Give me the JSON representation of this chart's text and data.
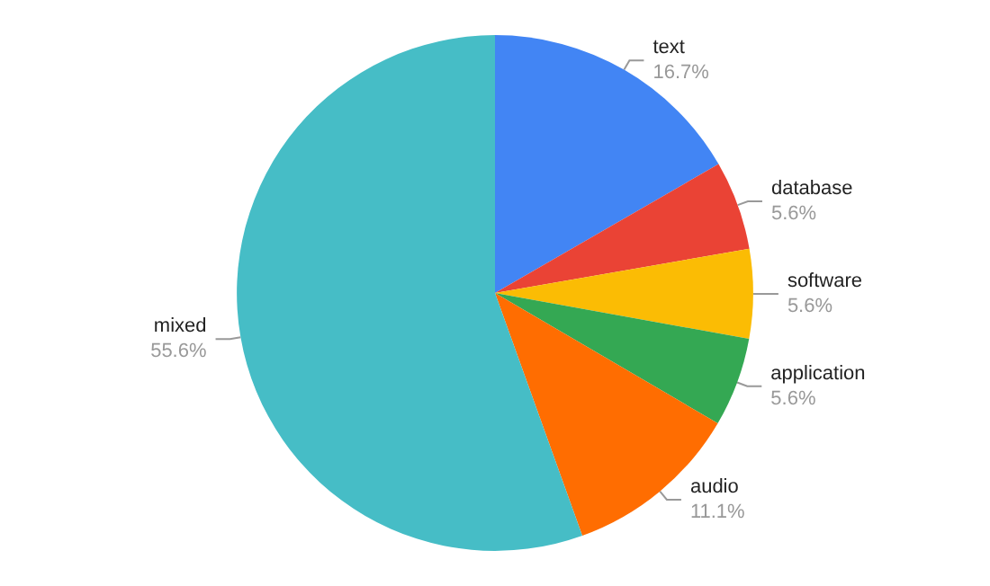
{
  "chart_data": {
    "type": "pie",
    "categories": [
      "text",
      "database",
      "software",
      "application",
      "audio",
      "mixed"
    ],
    "values": [
      16.7,
      5.6,
      5.6,
      5.6,
      11.1,
      55.6
    ],
    "value_labels": [
      "16.7%",
      "5.6%",
      "5.6%",
      "5.6%",
      "11.1%",
      "55.6%"
    ],
    "colors": [
      "#4285f4",
      "#ea4335",
      "#fbbc04",
      "#34a853",
      "#ff6d01",
      "#46bdc6"
    ],
    "legend": false
  }
}
